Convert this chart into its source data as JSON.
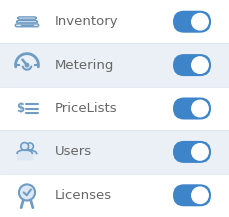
{
  "items": [
    {
      "label": "Inventory",
      "icon": "inventory",
      "bg": "#ffffff",
      "toggled": true
    },
    {
      "label": "Metering",
      "icon": "metering",
      "bg": "#eaf0f5",
      "toggled": true
    },
    {
      "label": "PriceLists",
      "icon": "pricelists",
      "bg": "#ffffff",
      "toggled": true
    },
    {
      "label": "Users",
      "icon": "users",
      "bg": "#eaf0f5",
      "toggled": true
    },
    {
      "label": "Licenses",
      "icon": "licenses",
      "bg": "#ffffff",
      "toggled": true
    }
  ],
  "toggle_on_color": "#3d85c8",
  "toggle_off_color": "#cccccc",
  "icon_color": "#6e9cc4",
  "text_color": "#666666",
  "border_color": "#d8e4ed",
  "figsize": [
    2.29,
    2.17
  ],
  "dpi": 100,
  "font_size": 9.5
}
